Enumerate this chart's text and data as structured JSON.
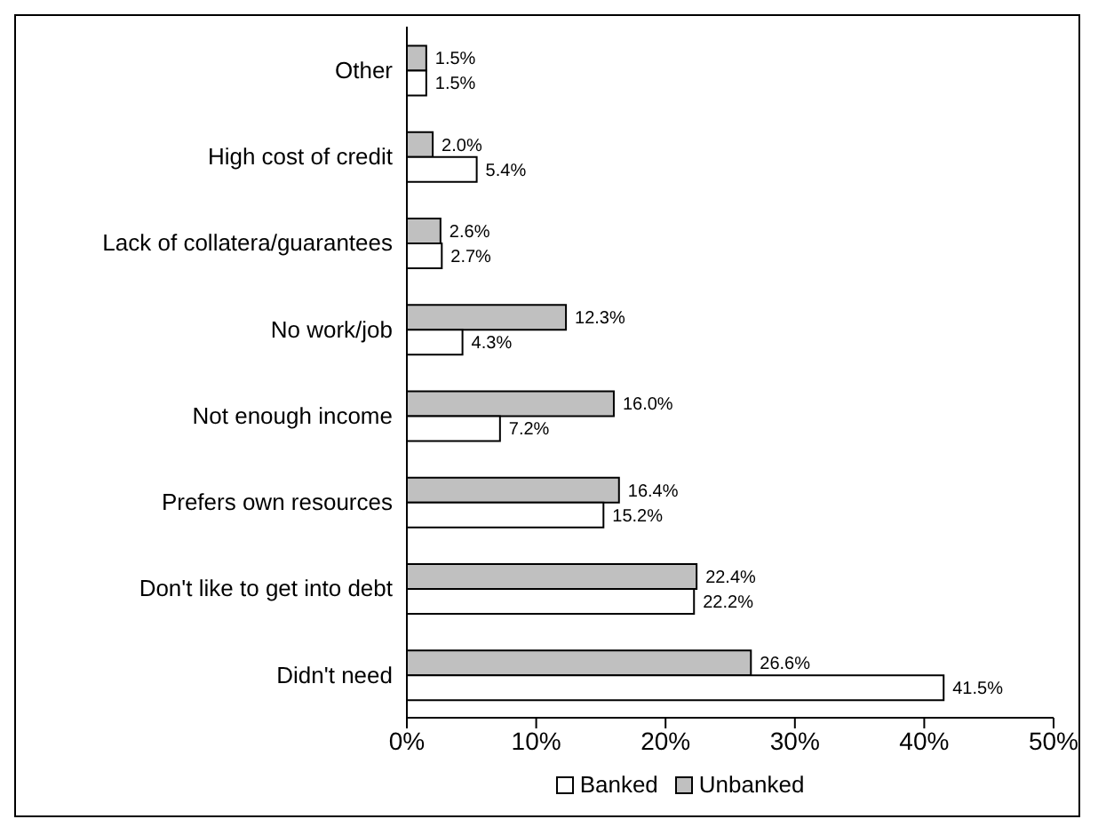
{
  "chart_data": {
    "type": "bar",
    "orientation": "horizontal",
    "categories": [
      "Other",
      "High cost of credit",
      "Lack of collatera/guarantees",
      "No work/job",
      "Not enough income",
      "Prefers own resources",
      "Don't like to get into debt",
      "Didn't need"
    ],
    "series": [
      {
        "name": "Banked",
        "color": "#ffffff",
        "values": [
          1.5,
          5.4,
          2.7,
          4.3,
          7.2,
          15.2,
          22.2,
          41.5
        ],
        "value_labels": [
          "1.5%",
          "5.4%",
          "2.7%",
          "4.3%",
          "7.2%",
          "15.2%",
          "22.2%",
          "41.5%"
        ]
      },
      {
        "name": "Unbanked",
        "color": "#c0c0c0",
        "values": [
          1.5,
          2.0,
          2.6,
          12.3,
          16.0,
          16.4,
          22.4,
          26.6
        ],
        "value_labels": [
          "1.5%",
          "2.0%",
          "2.6%",
          "12.3%",
          "16.0%",
          "16.4%",
          "22.4%",
          "26.6%"
        ]
      }
    ],
    "xlim": [
      0,
      50
    ],
    "xticks": [
      {
        "value": 0,
        "label": "0%"
      },
      {
        "value": 10,
        "label": "10%"
      },
      {
        "value": 20,
        "label": "20%"
      },
      {
        "value": 30,
        "label": "30%"
      },
      {
        "value": 40,
        "label": "40%"
      },
      {
        "value": 50,
        "label": "50%"
      }
    ],
    "grid": false,
    "legend": "bottom"
  }
}
